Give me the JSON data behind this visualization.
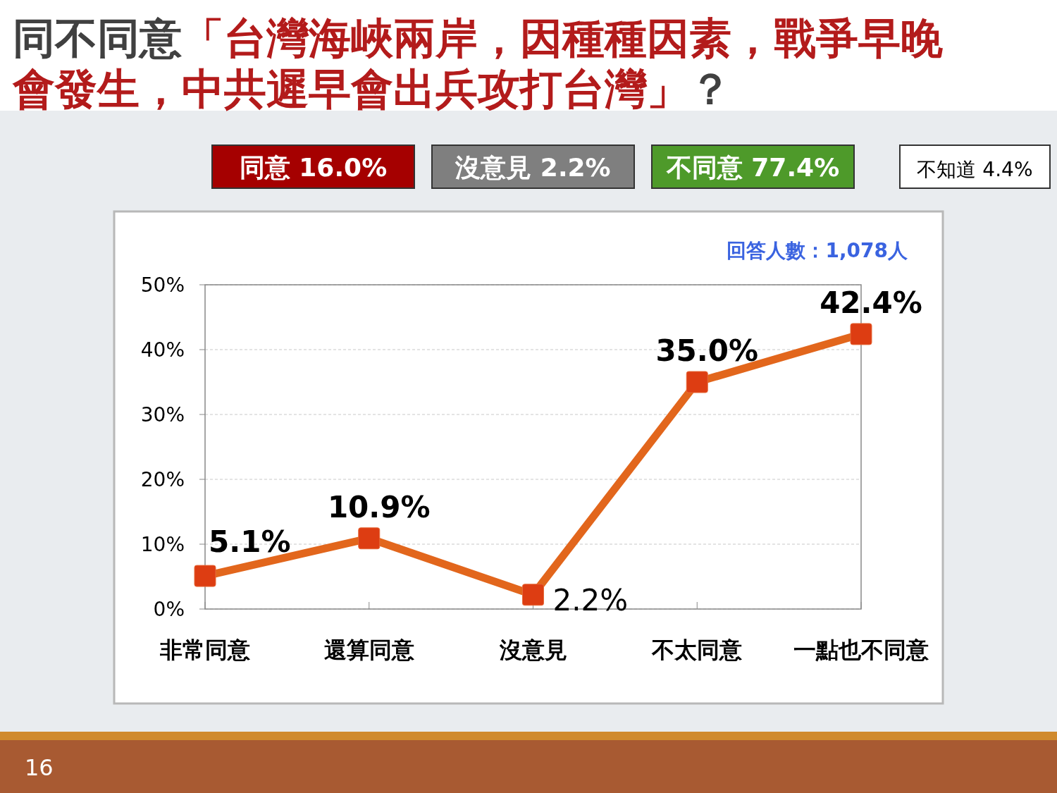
{
  "chart_data": {
    "type": "line",
    "title": "同不同意「台灣海峽兩岸，因種種因素，戰爭早晚會發生，中共遲早會出兵攻打台灣」？",
    "categories": [
      "非常同意",
      "還算同意",
      "沒意見",
      "不太同意",
      "一點也不同意"
    ],
    "series": [
      {
        "color": "#e2661c",
        "values": [
          5.1,
          10.9,
          2.2,
          35.0,
          42.4
        ],
        "value_labels": [
          "5.1%",
          "10.9%",
          "2.2%",
          "35.0%",
          "42.4%"
        ]
      }
    ],
    "ylim": [
      0,
      50
    ],
    "yticks": [
      {
        "value": 0,
        "label": "0%"
      },
      {
        "value": 10,
        "label": "10%"
      },
      {
        "value": 20,
        "label": "20%"
      },
      {
        "value": 30,
        "label": "30%"
      },
      {
        "value": 40,
        "label": "40%"
      },
      {
        "value": 50,
        "label": "50%"
      }
    ],
    "grid": "y",
    "marker": "square",
    "line_style": "solid",
    "annotations": [
      "同意 16.0%",
      "沒意見 2.2%",
      "不同意 77.4%",
      "不知道 4.4%",
      "回答人數：1,078人",
      "16"
    ]
  }
}
